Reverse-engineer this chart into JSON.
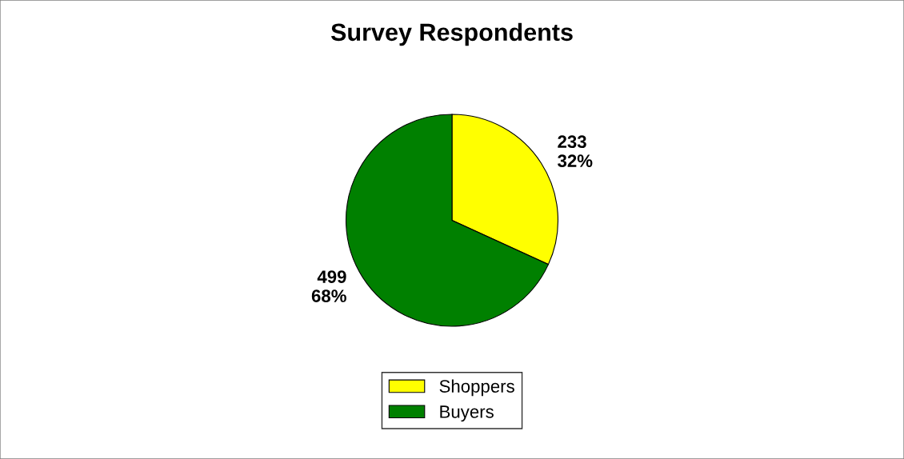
{
  "chart_data": {
    "type": "pie",
    "title": "Survey Respondents",
    "categories": [
      "Shoppers",
      "Buyers"
    ],
    "values": [
      233,
      499
    ],
    "colors": [
      "#ffff00",
      "#008000"
    ],
    "value_labels": [
      "233\n32%",
      "499\n68%"
    ],
    "legend": "bottom"
  }
}
